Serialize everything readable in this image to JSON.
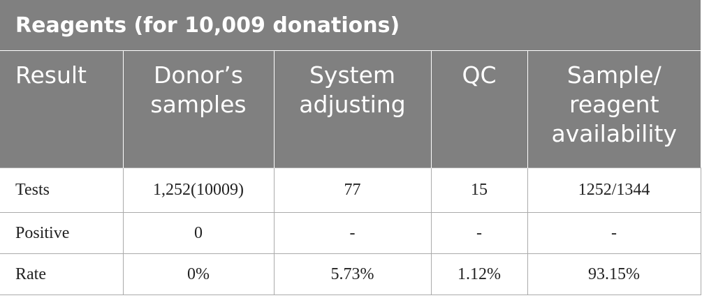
{
  "table": {
    "title": "Reagents (for 10,009 donations)",
    "header": [
      "Result",
      "Donor’s\nsamples",
      "System\nadjusting",
      "QC",
      "Sample/\nreagent\navailability"
    ],
    "rows": [
      [
        "Tests",
        "1,252(10009)",
        "77",
        "15",
        "1252/1344"
      ],
      [
        "Positive",
        "0",
        "-",
        "-",
        "-"
      ],
      [
        "Rate",
        "0%",
        "5.73%",
        "1.12%",
        "93.15%"
      ]
    ]
  }
}
